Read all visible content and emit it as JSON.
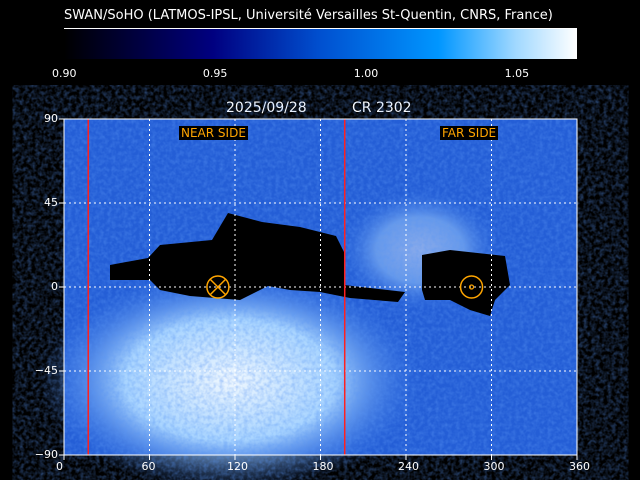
{
  "header": {
    "credit": "SWAN/SoHO (LATMOS-IPSL, Université Versailles St-Quentin, CNRS, France)"
  },
  "colorbar": {
    "range": [
      0.9,
      1.07
    ],
    "ticks": [
      "0.90",
      "0.95",
      "1.00",
      "1.05"
    ],
    "tick_values": [
      0.9,
      0.95,
      1.0,
      1.05
    ],
    "colors": [
      "#000000",
      "#000080",
      "#0096ff",
      "#ffffff"
    ]
  },
  "chart_data": {
    "type": "heatmap",
    "title_date": "2025/09/28",
    "title_cr": "CR 2302",
    "xlim": [
      0,
      360
    ],
    "ylim": [
      -90,
      90
    ],
    "x_ticks": [
      "0",
      "60",
      "120",
      "180",
      "240",
      "300",
      "360"
    ],
    "x_tick_values": [
      0,
      60,
      120,
      180,
      240,
      300,
      360
    ],
    "y_ticks": [
      "90",
      "45",
      "0",
      "−45",
      "−90"
    ],
    "y_tick_values": [
      90,
      45,
      0,
      -45,
      -90
    ],
    "grid": true,
    "near_side_label": "NEAR SIDE",
    "far_side_label": "FAR SIDE",
    "boundary_lines_lon": [
      17,
      197
    ],
    "near_side_center_lon": 108,
    "far_side_center_lon": 286,
    "line_color": "#ff2020",
    "marker_color": "#ffa500"
  }
}
